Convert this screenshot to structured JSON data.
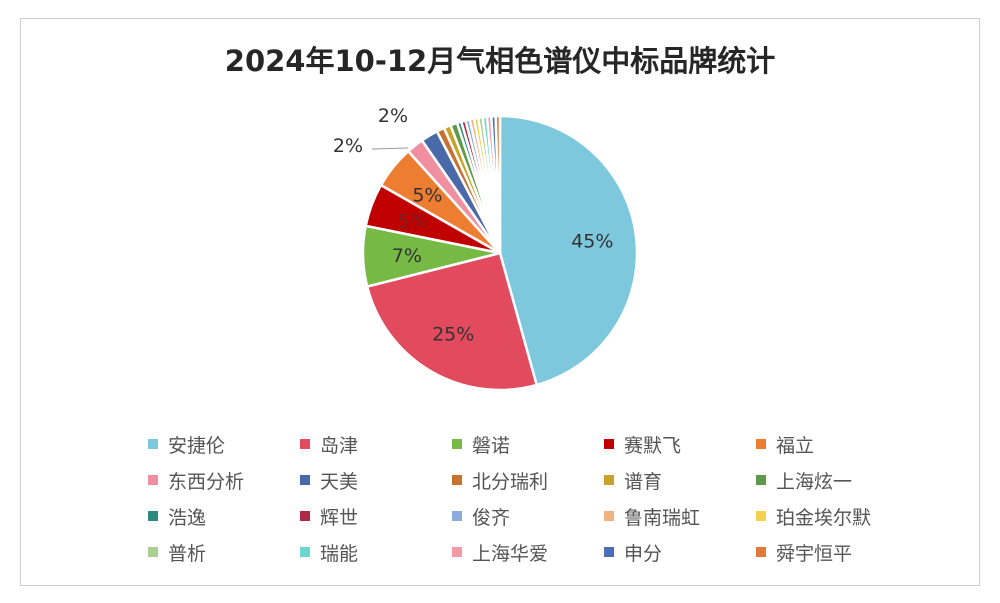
{
  "chart_data": {
    "type": "pie",
    "title": "2024年10-12月气相色谱仪中标品牌统计",
    "slices": [
      {
        "label": "安捷伦",
        "value": 45,
        "color": "#7ec8de",
        "data_label": "45%"
      },
      {
        "label": "岛津",
        "value": 25,
        "color": "#e24a5e",
        "data_label": "25%"
      },
      {
        "label": "磐诺",
        "value": 7,
        "color": "#76b945",
        "data_label": "7%"
      },
      {
        "label": "赛默飞",
        "value": 5,
        "color": "#c00000",
        "data_label": "5%"
      },
      {
        "label": "福立",
        "value": 5,
        "color": "#ed7d31",
        "data_label": "5%"
      },
      {
        "label": "东西分析",
        "value": 2,
        "color": "#ef8fa0",
        "data_label": "2%"
      },
      {
        "label": "天美",
        "value": 2,
        "color": "#4a69a8",
        "data_label": "2%"
      },
      {
        "label": "北分瑞利",
        "value": 0.9,
        "color": "#c77232",
        "data_label": ""
      },
      {
        "label": "谱育",
        "value": 0.8,
        "color": "#c9a227",
        "data_label": ""
      },
      {
        "label": "上海炫一",
        "value": 0.8,
        "color": "#5f9a4a",
        "data_label": ""
      },
      {
        "label": "浩逸",
        "value": 0.5,
        "color": "#2e8a80",
        "data_label": ""
      },
      {
        "label": "辉世",
        "value": 0.5,
        "color": "#b02a45",
        "data_label": ""
      },
      {
        "label": "俊齐",
        "value": 0.5,
        "color": "#8eaadf",
        "data_label": ""
      },
      {
        "label": "鲁南瑞虹",
        "value": 0.5,
        "color": "#f2b27e",
        "data_label": ""
      },
      {
        "label": "珀金埃尔默",
        "value": 0.5,
        "color": "#f5d04a",
        "data_label": ""
      },
      {
        "label": "普析",
        "value": 0.5,
        "color": "#a9d08e",
        "data_label": ""
      },
      {
        "label": "瑞能",
        "value": 0.5,
        "color": "#6fd6cf",
        "data_label": ""
      },
      {
        "label": "上海华爱",
        "value": 0.5,
        "color": "#f29aa5",
        "data_label": ""
      },
      {
        "label": "申分",
        "value": 0.5,
        "color": "#4a6fb8",
        "data_label": ""
      },
      {
        "label": "舜宇恒平",
        "value": 0.5,
        "color": "#e0793a",
        "data_label": ""
      }
    ],
    "legend_position": "bottom"
  }
}
